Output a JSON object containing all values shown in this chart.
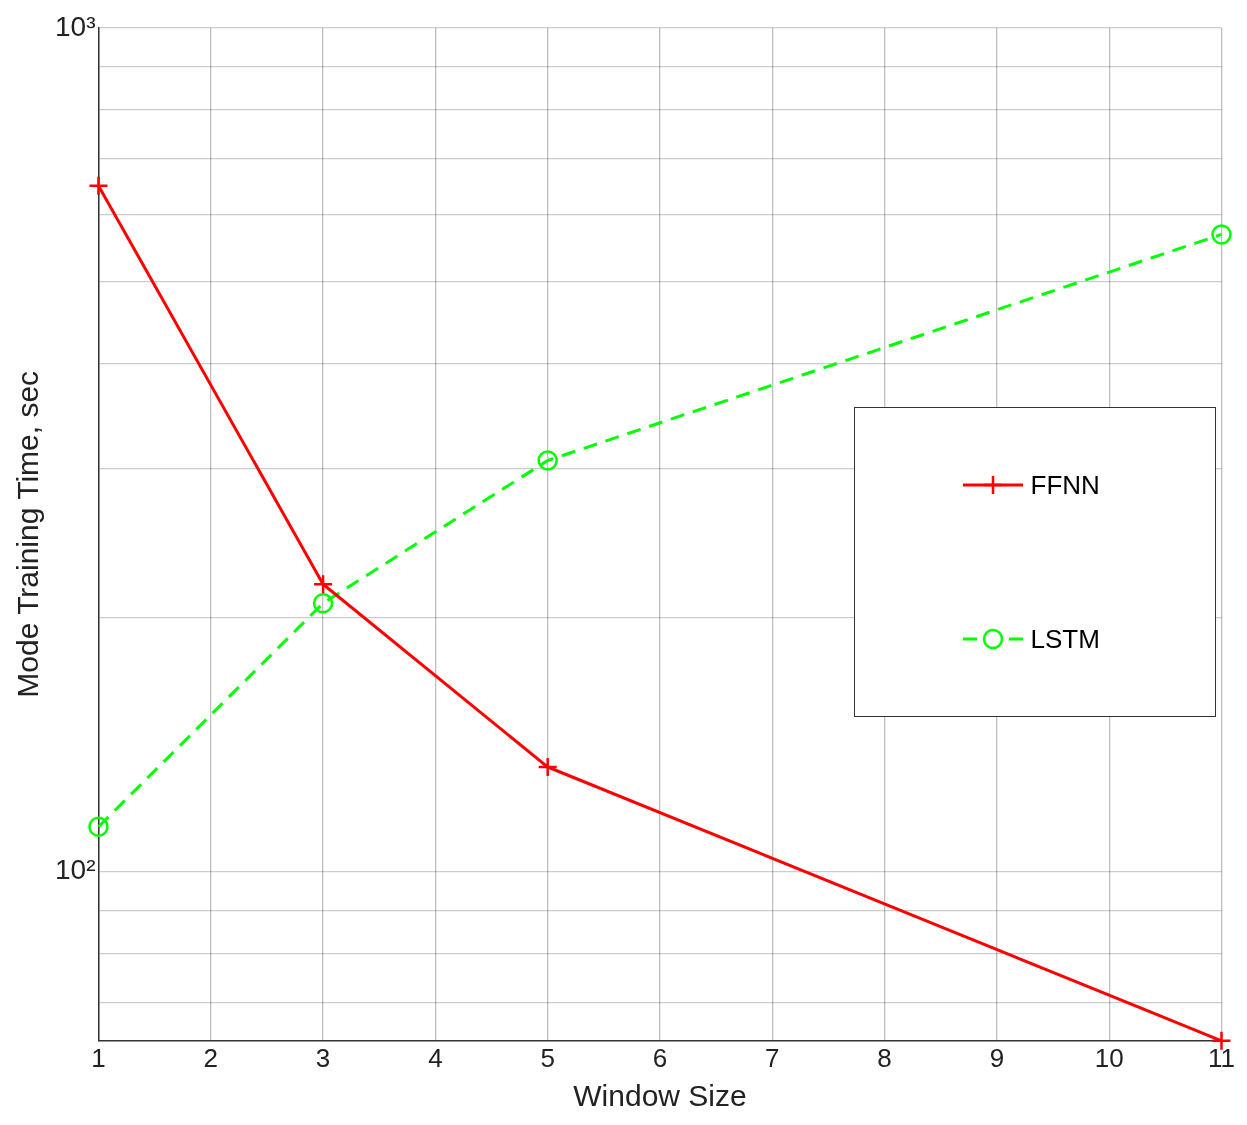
{
  "chart_data": {
    "type": "line",
    "xlabel": "Window Size",
    "ylabel": "Mode Training Time, sec",
    "log": "y",
    "grid": true,
    "legend": "right",
    "x": [
      1,
      3,
      5,
      11
    ],
    "series": [
      {
        "name": "FFNN",
        "color": "#ff0000",
        "values": [
          650,
          219,
          133,
          63
        ],
        "marker": "cross",
        "line_style": "solid"
      },
      {
        "name": "LSTM",
        "color": "#00ff00",
        "values": [
          113,
          208,
          307,
          569
        ],
        "marker": "circle",
        "line_style": "dashed"
      }
    ],
    "xlim": [
      1,
      11
    ],
    "xticks": [
      1,
      2,
      3,
      4,
      5,
      6,
      7,
      8,
      9,
      10,
      11
    ],
    "ylim": [
      63,
      1000
    ],
    "yticks": [
      {
        "value": 70,
        "label": null
      },
      {
        "value": 80,
        "label": null
      },
      {
        "value": 90,
        "label": null
      },
      {
        "value": 100,
        "label": "10²"
      },
      {
        "value": 200,
        "label": null
      },
      {
        "value": 300,
        "label": null
      },
      {
        "value": 400,
        "label": null
      },
      {
        "value": 500,
        "label": null
      },
      {
        "value": 600,
        "label": null
      },
      {
        "value": 700,
        "label": null
      },
      {
        "value": 800,
        "label": null
      },
      {
        "value": 900,
        "label": null
      },
      {
        "value": 1000,
        "label": "10³"
      }
    ]
  }
}
